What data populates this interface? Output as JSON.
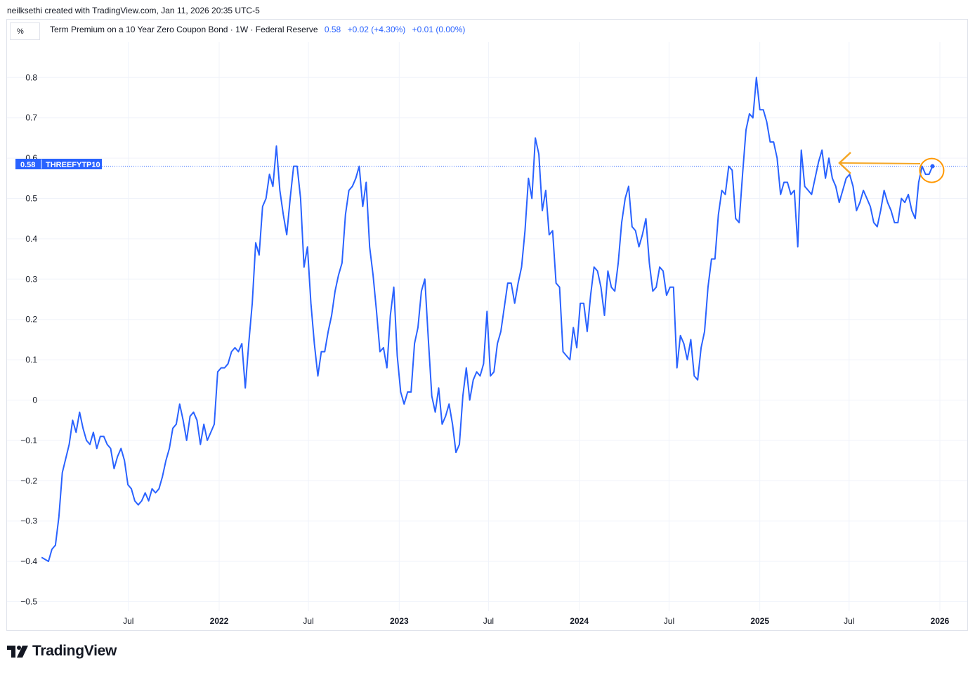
{
  "attribution": "neilksethi created with TradingView.com, Jan 11, 2026 20:35 UTC-5",
  "scale_label": "%",
  "legend": {
    "title": "Term Premium on a 10 Year Zero Coupon Bond · 1W · Federal Reserve",
    "last": "0.58",
    "change": "+0.02 (+4.30%)",
    "change2": "+0.01 (0.00%)"
  },
  "price_tag": {
    "value": "0.58",
    "symbol": "THREEFYTP10"
  },
  "brand": "TradingView",
  "colors": {
    "line": "#2962ff",
    "annotation": "#ff9800",
    "grid": "#f0f3fa"
  },
  "icons": {
    "logo": "tradingview-logo-icon",
    "arrow": "left-arrow-icon"
  },
  "chart_data": {
    "type": "line",
    "title": "Term Premium on a 10 Year Zero Coupon Bond · 1W · Federal Reserve",
    "xlabel": "",
    "ylabel": "",
    "ylim": [
      -0.52,
      0.88
    ],
    "yticks": [
      "0.8",
      "0.7",
      "0.6",
      "0.5",
      "0.4",
      "0.3",
      "0.2",
      "0.1",
      "0",
      "−0.1",
      "−0.2",
      "−0.3",
      "−0.4",
      "−0.5"
    ],
    "xticks": [
      {
        "label": "Jul",
        "year": false,
        "date": "2021-07-01"
      },
      {
        "label": "2022",
        "year": true,
        "date": "2022-01-01"
      },
      {
        "label": "Jul",
        "year": false,
        "date": "2022-07-01"
      },
      {
        "label": "2023",
        "year": true,
        "date": "2023-01-01"
      },
      {
        "label": "Jul",
        "year": false,
        "date": "2023-07-01"
      },
      {
        "label": "2024",
        "year": true,
        "date": "2024-01-01"
      },
      {
        "label": "Jul",
        "year": false,
        "date": "2024-07-01"
      },
      {
        "label": "2025",
        "year": true,
        "date": "2025-01-01"
      },
      {
        "label": "Jul",
        "year": false,
        "date": "2025-07-01"
      },
      {
        "label": "2026",
        "year": true,
        "date": "2026-01-01"
      }
    ],
    "grid": true,
    "series": [
      {
        "points": [
          [
            "2021-01-06",
            -0.39
          ],
          [
            "2021-01-20",
            -0.4
          ],
          [
            "2021-01-27",
            -0.37
          ],
          [
            "2021-02-03",
            -0.36
          ],
          [
            "2021-02-10",
            -0.29
          ],
          [
            "2021-02-17",
            -0.18
          ],
          [
            "2021-03-03",
            -0.11
          ],
          [
            "2021-03-10",
            -0.05
          ],
          [
            "2021-03-17",
            -0.08
          ],
          [
            "2021-03-24",
            -0.03
          ],
          [
            "2021-03-31",
            -0.07
          ],
          [
            "2021-04-07",
            -0.1
          ],
          [
            "2021-04-14",
            -0.11
          ],
          [
            "2021-04-21",
            -0.08
          ],
          [
            "2021-04-28",
            -0.12
          ],
          [
            "2021-05-05",
            -0.09
          ],
          [
            "2021-05-12",
            -0.09
          ],
          [
            "2021-05-19",
            -0.11
          ],
          [
            "2021-05-26",
            -0.12
          ],
          [
            "2021-06-02",
            -0.17
          ],
          [
            "2021-06-09",
            -0.14
          ],
          [
            "2021-06-16",
            -0.12
          ],
          [
            "2021-06-23",
            -0.15
          ],
          [
            "2021-06-30",
            -0.21
          ],
          [
            "2021-07-07",
            -0.22
          ],
          [
            "2021-07-14",
            -0.25
          ],
          [
            "2021-07-21",
            -0.26
          ],
          [
            "2021-07-28",
            -0.25
          ],
          [
            "2021-08-04",
            -0.23
          ],
          [
            "2021-08-11",
            -0.25
          ],
          [
            "2021-08-18",
            -0.22
          ],
          [
            "2021-08-25",
            -0.23
          ],
          [
            "2021-09-01",
            -0.22
          ],
          [
            "2021-09-08",
            -0.19
          ],
          [
            "2021-09-15",
            -0.15
          ],
          [
            "2021-09-22",
            -0.12
          ],
          [
            "2021-09-29",
            -0.07
          ],
          [
            "2021-10-06",
            -0.06
          ],
          [
            "2021-10-13",
            -0.01
          ],
          [
            "2021-10-20",
            -0.05
          ],
          [
            "2021-10-27",
            -0.1
          ],
          [
            "2021-11-03",
            -0.04
          ],
          [
            "2021-11-10",
            -0.03
          ],
          [
            "2021-11-17",
            -0.05
          ],
          [
            "2021-11-24",
            -0.11
          ],
          [
            "2021-12-01",
            -0.06
          ],
          [
            "2021-12-08",
            -0.1
          ],
          [
            "2021-12-15",
            -0.08
          ],
          [
            "2021-12-22",
            -0.06
          ],
          [
            "2021-12-29",
            0.07
          ],
          [
            "2022-01-05",
            0.08
          ],
          [
            "2022-01-12",
            0.08
          ],
          [
            "2022-01-19",
            0.09
          ],
          [
            "2022-01-26",
            0.12
          ],
          [
            "2022-02-02",
            0.13
          ],
          [
            "2022-02-09",
            0.12
          ],
          [
            "2022-02-16",
            0.14
          ],
          [
            "2022-02-23",
            0.03
          ],
          [
            "2022-03-02",
            0.14
          ],
          [
            "2022-03-09",
            0.24
          ],
          [
            "2022-03-16",
            0.39
          ],
          [
            "2022-03-23",
            0.36
          ],
          [
            "2022-03-30",
            0.48
          ],
          [
            "2022-04-06",
            0.5
          ],
          [
            "2022-04-13",
            0.56
          ],
          [
            "2022-04-20",
            0.53
          ],
          [
            "2022-04-27",
            0.63
          ],
          [
            "2022-05-04",
            0.52
          ],
          [
            "2022-05-11",
            0.46
          ],
          [
            "2022-05-18",
            0.41
          ],
          [
            "2022-05-25",
            0.5
          ],
          [
            "2022-06-01",
            0.58
          ],
          [
            "2022-06-08",
            0.58
          ],
          [
            "2022-06-15",
            0.5
          ],
          [
            "2022-06-22",
            0.33
          ],
          [
            "2022-06-29",
            0.38
          ],
          [
            "2022-07-06",
            0.24
          ],
          [
            "2022-07-13",
            0.14
          ],
          [
            "2022-07-20",
            0.06
          ],
          [
            "2022-07-27",
            0.12
          ],
          [
            "2022-08-03",
            0.12
          ],
          [
            "2022-08-10",
            0.17
          ],
          [
            "2022-08-17",
            0.21
          ],
          [
            "2022-08-24",
            0.27
          ],
          [
            "2022-08-31",
            0.31
          ],
          [
            "2022-09-07",
            0.34
          ],
          [
            "2022-09-14",
            0.46
          ],
          [
            "2022-09-21",
            0.52
          ],
          [
            "2022-09-28",
            0.53
          ],
          [
            "2022-10-05",
            0.55
          ],
          [
            "2022-10-12",
            0.58
          ],
          [
            "2022-10-19",
            0.48
          ],
          [
            "2022-10-26",
            0.54
          ],
          [
            "2022-11-02",
            0.38
          ],
          [
            "2022-11-09",
            0.31
          ],
          [
            "2022-11-16",
            0.22
          ],
          [
            "2022-11-23",
            0.12
          ],
          [
            "2022-11-30",
            0.13
          ],
          [
            "2022-12-07",
            0.08
          ],
          [
            "2022-12-14",
            0.21
          ],
          [
            "2022-12-21",
            0.28
          ],
          [
            "2022-12-28",
            0.11
          ],
          [
            "2023-01-04",
            0.02
          ],
          [
            "2023-01-11",
            -0.01
          ],
          [
            "2023-01-18",
            0.02
          ],
          [
            "2023-01-25",
            0.02
          ],
          [
            "2023-02-01",
            0.14
          ],
          [
            "2023-02-08",
            0.18
          ],
          [
            "2023-02-15",
            0.27
          ],
          [
            "2023-02-22",
            0.3
          ],
          [
            "2023-03-01",
            0.15
          ],
          [
            "2023-03-08",
            0.01
          ],
          [
            "2023-03-15",
            -0.03
          ],
          [
            "2023-03-22",
            0.03
          ],
          [
            "2023-03-29",
            -0.06
          ],
          [
            "2023-04-05",
            -0.04
          ],
          [
            "2023-04-12",
            -0.01
          ],
          [
            "2023-04-19",
            -0.06
          ],
          [
            "2023-04-26",
            -0.13
          ],
          [
            "2023-05-03",
            -0.11
          ],
          [
            "2023-05-10",
            0.01
          ],
          [
            "2023-05-17",
            0.08
          ],
          [
            "2023-05-24",
            0.0
          ],
          [
            "2023-05-31",
            0.05
          ],
          [
            "2023-06-07",
            0.07
          ],
          [
            "2023-06-14",
            0.06
          ],
          [
            "2023-06-21",
            0.09
          ],
          [
            "2023-06-28",
            0.22
          ],
          [
            "2023-07-05",
            0.06
          ],
          [
            "2023-07-12",
            0.07
          ],
          [
            "2023-07-19",
            0.14
          ],
          [
            "2023-07-26",
            0.17
          ],
          [
            "2023-08-02",
            0.23
          ],
          [
            "2023-08-09",
            0.29
          ],
          [
            "2023-08-16",
            0.29
          ],
          [
            "2023-08-23",
            0.24
          ],
          [
            "2023-08-30",
            0.29
          ],
          [
            "2023-09-06",
            0.33
          ],
          [
            "2023-09-13",
            0.42
          ],
          [
            "2023-09-20",
            0.55
          ],
          [
            "2023-09-27",
            0.5
          ],
          [
            "2023-10-04",
            0.65
          ],
          [
            "2023-10-11",
            0.61
          ],
          [
            "2023-10-18",
            0.47
          ],
          [
            "2023-10-25",
            0.52
          ],
          [
            "2023-11-01",
            0.41
          ],
          [
            "2023-11-08",
            0.42
          ],
          [
            "2023-11-15",
            0.29
          ],
          [
            "2023-11-22",
            0.28
          ],
          [
            "2023-11-29",
            0.12
          ],
          [
            "2023-12-06",
            0.11
          ],
          [
            "2023-12-13",
            0.1
          ],
          [
            "2023-12-20",
            0.18
          ],
          [
            "2023-12-27",
            0.13
          ],
          [
            "2024-01-03",
            0.24
          ],
          [
            "2024-01-10",
            0.24
          ],
          [
            "2024-01-17",
            0.17
          ],
          [
            "2024-01-24",
            0.26
          ],
          [
            "2024-01-31",
            0.33
          ],
          [
            "2024-02-07",
            0.32
          ],
          [
            "2024-02-14",
            0.28
          ],
          [
            "2024-02-21",
            0.21
          ],
          [
            "2024-02-28",
            0.32
          ],
          [
            "2024-03-06",
            0.28
          ],
          [
            "2024-03-13",
            0.27
          ],
          [
            "2024-03-20",
            0.34
          ],
          [
            "2024-03-27",
            0.44
          ],
          [
            "2024-04-03",
            0.5
          ],
          [
            "2024-04-10",
            0.53
          ],
          [
            "2024-04-17",
            0.43
          ],
          [
            "2024-04-24",
            0.42
          ],
          [
            "2024-05-01",
            0.38
          ],
          [
            "2024-05-08",
            0.41
          ],
          [
            "2024-05-15",
            0.45
          ],
          [
            "2024-05-22",
            0.34
          ],
          [
            "2024-05-29",
            0.27
          ],
          [
            "2024-06-05",
            0.28
          ],
          [
            "2024-06-12",
            0.33
          ],
          [
            "2024-06-19",
            0.32
          ],
          [
            "2024-06-26",
            0.26
          ],
          [
            "2024-07-03",
            0.28
          ],
          [
            "2024-07-10",
            0.28
          ],
          [
            "2024-07-17",
            0.08
          ],
          [
            "2024-07-24",
            0.16
          ],
          [
            "2024-07-31",
            0.14
          ],
          [
            "2024-08-07",
            0.1
          ],
          [
            "2024-08-14",
            0.15
          ],
          [
            "2024-08-21",
            0.06
          ],
          [
            "2024-08-28",
            0.05
          ],
          [
            "2024-09-04",
            0.13
          ],
          [
            "2024-09-11",
            0.17
          ],
          [
            "2024-09-18",
            0.28
          ],
          [
            "2024-09-25",
            0.35
          ],
          [
            "2024-10-02",
            0.35
          ],
          [
            "2024-10-09",
            0.46
          ],
          [
            "2024-10-16",
            0.52
          ],
          [
            "2024-10-23",
            0.51
          ],
          [
            "2024-10-30",
            0.58
          ],
          [
            "2024-11-06",
            0.57
          ],
          [
            "2024-11-13",
            0.45
          ],
          [
            "2024-11-20",
            0.44
          ],
          [
            "2024-11-27",
            0.56
          ],
          [
            "2024-12-04",
            0.67
          ],
          [
            "2024-12-11",
            0.71
          ],
          [
            "2024-12-18",
            0.7
          ],
          [
            "2024-12-25",
            0.8
          ],
          [
            "2025-01-01",
            0.72
          ],
          [
            "2025-01-08",
            0.72
          ],
          [
            "2025-01-15",
            0.69
          ],
          [
            "2025-01-22",
            0.64
          ],
          [
            "2025-01-29",
            0.64
          ],
          [
            "2025-02-05",
            0.6
          ],
          [
            "2025-02-12",
            0.51
          ],
          [
            "2025-02-19",
            0.54
          ],
          [
            "2025-02-26",
            0.54
          ],
          [
            "2025-03-05",
            0.51
          ],
          [
            "2025-03-12",
            0.52
          ],
          [
            "2025-03-19",
            0.38
          ],
          [
            "2025-03-26",
            0.62
          ],
          [
            "2025-04-02",
            0.53
          ],
          [
            "2025-04-09",
            0.52
          ],
          [
            "2025-04-16",
            0.51
          ],
          [
            "2025-04-23",
            0.55
          ],
          [
            "2025-04-30",
            0.59
          ],
          [
            "2025-05-07",
            0.62
          ],
          [
            "2025-05-14",
            0.55
          ],
          [
            "2025-05-21",
            0.6
          ],
          [
            "2025-05-28",
            0.55
          ],
          [
            "2025-06-04",
            0.53
          ],
          [
            "2025-06-11",
            0.49
          ],
          [
            "2025-06-18",
            0.52
          ],
          [
            "2025-06-25",
            0.55
          ],
          [
            "2025-07-02",
            0.56
          ],
          [
            "2025-07-09",
            0.53
          ],
          [
            "2025-07-16",
            0.47
          ],
          [
            "2025-07-23",
            0.49
          ],
          [
            "2025-07-30",
            0.52
          ],
          [
            "2025-08-06",
            0.5
          ],
          [
            "2025-08-13",
            0.48
          ],
          [
            "2025-08-20",
            0.44
          ],
          [
            "2025-08-27",
            0.43
          ],
          [
            "2025-09-03",
            0.47
          ],
          [
            "2025-09-10",
            0.52
          ],
          [
            "2025-09-17",
            0.49
          ],
          [
            "2025-09-24",
            0.47
          ],
          [
            "2025-10-01",
            0.44
          ],
          [
            "2025-10-08",
            0.44
          ],
          [
            "2025-10-15",
            0.5
          ],
          [
            "2025-10-22",
            0.49
          ],
          [
            "2025-10-29",
            0.51
          ],
          [
            "2025-11-05",
            0.47
          ],
          [
            "2025-11-12",
            0.45
          ],
          [
            "2025-11-19",
            0.54
          ],
          [
            "2025-11-26",
            0.58
          ],
          [
            "2025-12-03",
            0.56
          ],
          [
            "2025-12-10",
            0.56
          ],
          [
            "2025-12-17",
            0.58
          ]
        ]
      }
    ]
  }
}
